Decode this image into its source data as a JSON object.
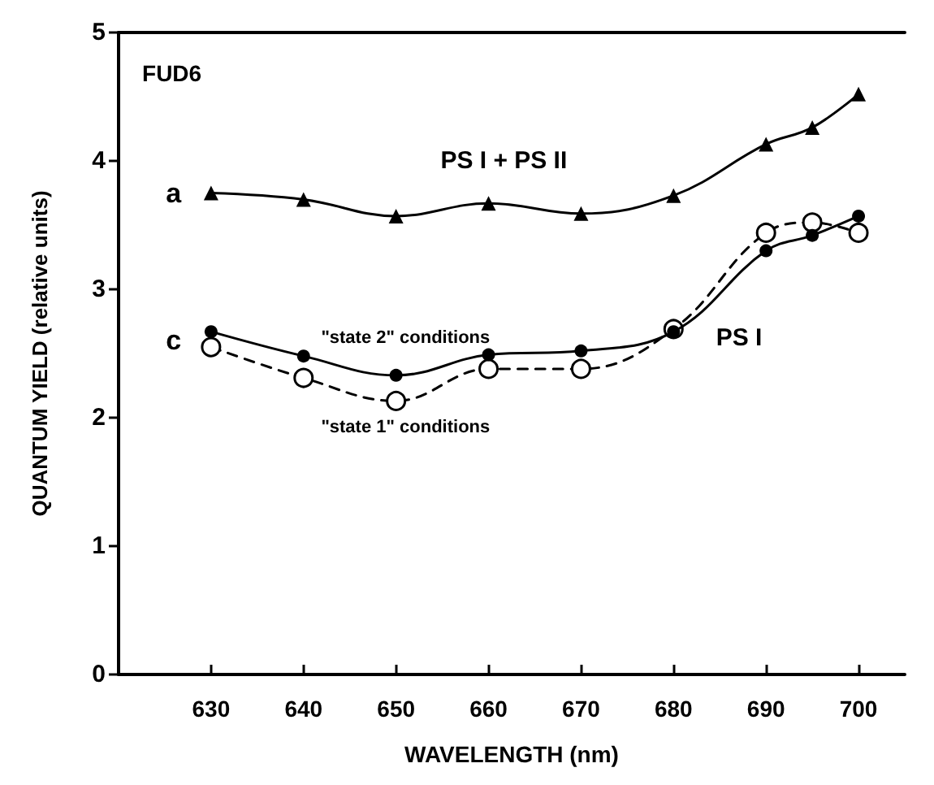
{
  "chart_data": {
    "type": "line",
    "xlabel": "WAVELENGTH (nm)",
    "ylabel": "QUANTUM YIELD (relative units)",
    "x": [
      630,
      640,
      650,
      660,
      670,
      680,
      690,
      695,
      700
    ],
    "series": [
      {
        "color": "#000000",
        "marker": "triangle",
        "line_style": "solid",
        "values": [
          3.75,
          3.7,
          3.57,
          3.67,
          3.59,
          3.73,
          4.13,
          4.26,
          4.52
        ]
      },
      {
        "color": "#000000",
        "marker": "circle",
        "line_style": "solid",
        "values": [
          2.67,
          2.48,
          2.33,
          2.49,
          2.52,
          2.67,
          3.3,
          3.42,
          3.57
        ]
      },
      {
        "color": "#000000",
        "marker": "circle",
        "line_style": "dashed",
        "values": [
          2.55,
          2.31,
          2.13,
          2.38,
          2.38,
          2.69,
          3.44,
          3.52,
          3.44
        ]
      }
    ],
    "xlim": [
      620,
      705
    ],
    "xticks": [
      630,
      640,
      650,
      660,
      670,
      680,
      690,
      700
    ],
    "ylim": [
      0,
      5
    ],
    "yticks": [
      0,
      1,
      2,
      3,
      4,
      5
    ],
    "grid": false,
    "annotations": [
      "FUD6",
      "a",
      "PS I + PS II",
      "c",
      "\"state 2\" conditions",
      "\"state 1\" conditions",
      "PS I"
    ]
  }
}
